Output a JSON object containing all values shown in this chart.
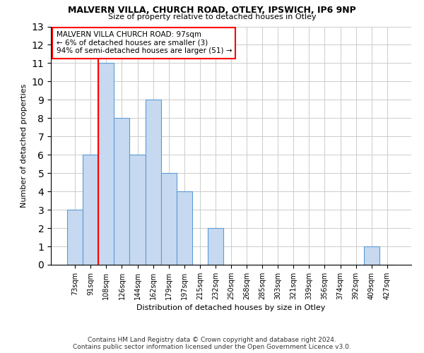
{
  "title": "MALVERN VILLA, CHURCH ROAD, OTLEY, IPSWICH, IP6 9NP",
  "subtitle": "Size of property relative to detached houses in Otley",
  "xlabel": "Distribution of detached houses by size in Otley",
  "ylabel": "Number of detached properties",
  "categories": [
    "73sqm",
    "91sqm",
    "108sqm",
    "126sqm",
    "144sqm",
    "162sqm",
    "179sqm",
    "197sqm",
    "215sqm",
    "232sqm",
    "250sqm",
    "268sqm",
    "285sqm",
    "303sqm",
    "321sqm",
    "339sqm",
    "356sqm",
    "374sqm",
    "392sqm",
    "409sqm",
    "427sqm"
  ],
  "values": [
    3,
    6,
    11,
    8,
    6,
    9,
    5,
    4,
    0,
    2,
    0,
    0,
    0,
    0,
    0,
    0,
    0,
    0,
    0,
    1,
    0
  ],
  "bar_color": "#c6d9f0",
  "bar_edge_color": "#5b9bd5",
  "annotation_title": "MALVERN VILLA CHURCH ROAD: 97sqm",
  "annotation_line1": "← 6% of detached houses are smaller (3)",
  "annotation_line2": "94% of semi-detached houses are larger (51) →",
  "ylim": [
    0,
    13
  ],
  "yticks": [
    0,
    1,
    2,
    3,
    4,
    5,
    6,
    7,
    8,
    9,
    10,
    11,
    12,
    13
  ],
  "footer_line1": "Contains HM Land Registry data © Crown copyright and database right 2024.",
  "footer_line2": "Contains public sector information licensed under the Open Government Licence v3.0.",
  "background_color": "#ffffff",
  "grid_color": "#cccccc",
  "title_fontsize": 9,
  "subtitle_fontsize": 8,
  "ylabel_fontsize": 8,
  "xlabel_fontsize": 8,
  "tick_fontsize": 7,
  "footer_fontsize": 6.5,
  "ann_fontsize": 7.5
}
